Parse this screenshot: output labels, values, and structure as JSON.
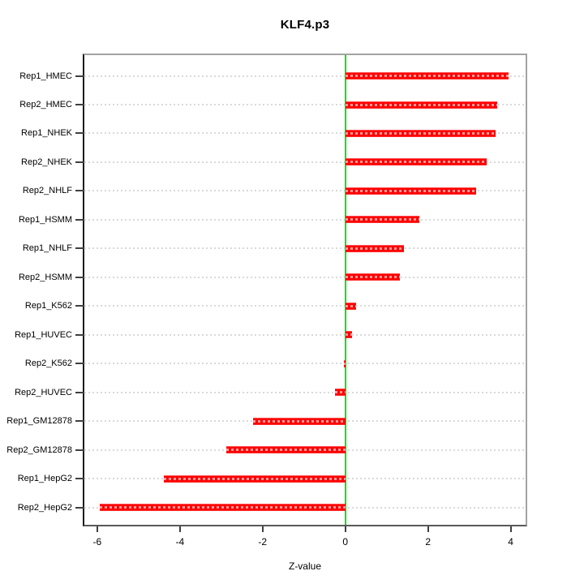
{
  "figure": {
    "title": "KLF4.p3"
  },
  "chart_data": {
    "type": "bar",
    "orientation": "horizontal",
    "title": "KLF4.p3",
    "xlabel": "Z-value",
    "ylabel": "",
    "categories": [
      "Rep1_HMEC",
      "Rep2_HMEC",
      "Rep1_NHEK",
      "Rep2_NHEK",
      "Rep2_NHLF",
      "Rep1_HSMM",
      "Rep1_NHLF",
      "Rep2_HSMM",
      "Rep1_K562",
      "Rep1_HUVEC",
      "Rep2_K562",
      "Rep2_HUVEC",
      "Rep1_GM12878",
      "Rep2_GM12878",
      "Rep1_HepG2",
      "Rep2_HepG2"
    ],
    "values": [
      3.95,
      3.68,
      3.63,
      3.41,
      3.17,
      1.8,
      1.42,
      1.33,
      0.27,
      0.16,
      -0.04,
      -0.25,
      -2.23,
      -2.87,
      -4.39,
      -5.93
    ],
    "x_ticks": [
      -6,
      -4,
      -2,
      0,
      2,
      4
    ],
    "xlim": [
      -6.31,
      4.36
    ],
    "grid": "on",
    "grid_style": "dotted",
    "grid_color": "#d9d9d9",
    "bar_color": "#ff0000",
    "zero_line_color": "#00e000",
    "legend": "none"
  }
}
